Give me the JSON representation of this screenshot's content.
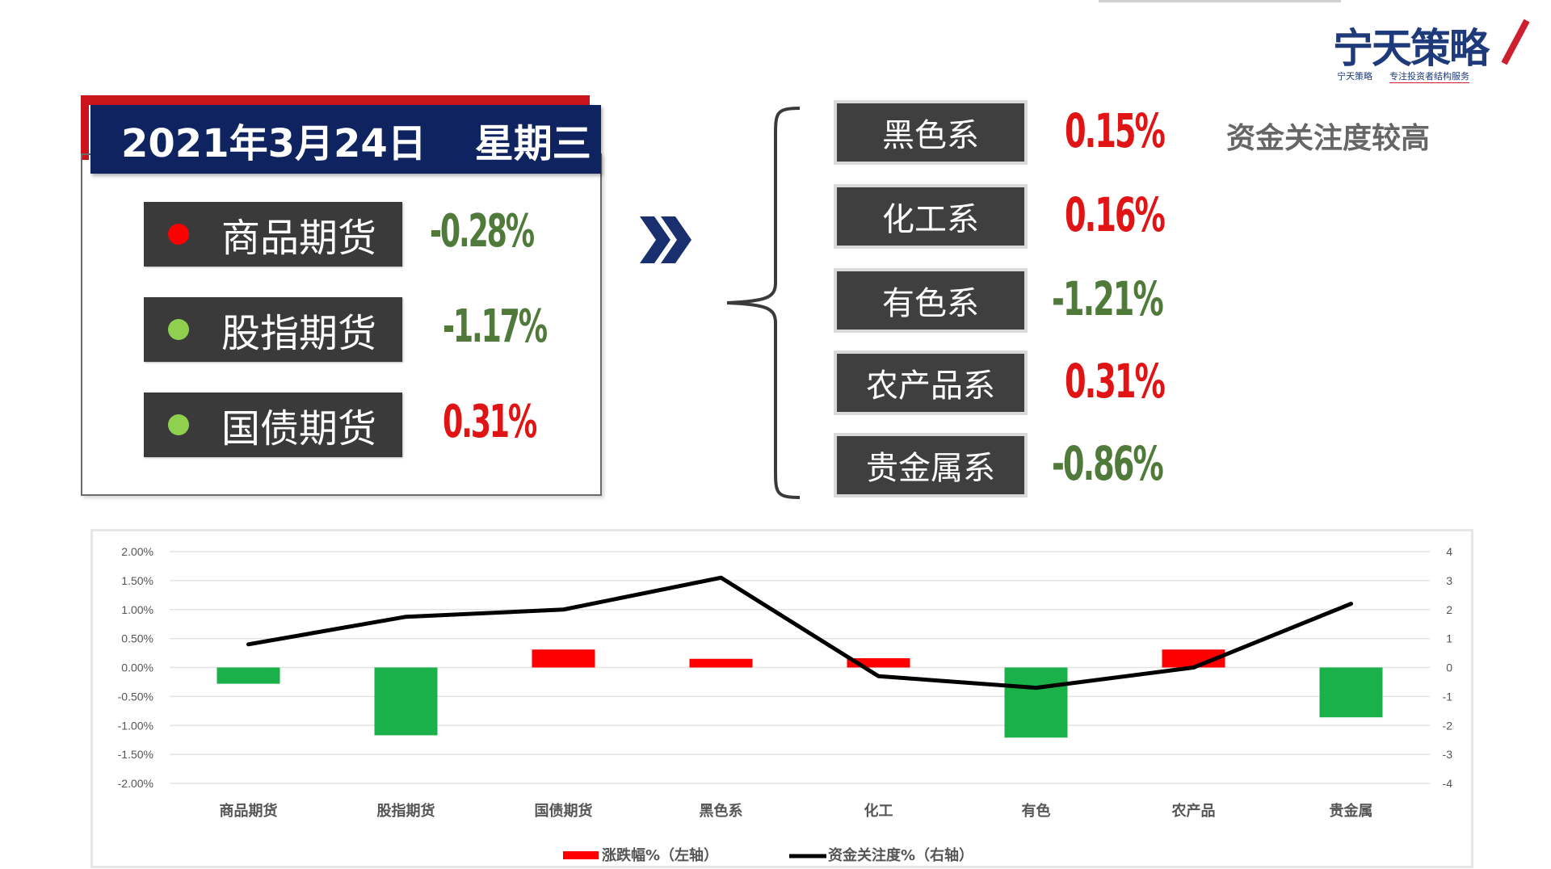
{
  "logo": {
    "main": "宁天策略",
    "sub_left": "宁天策略",
    "sub_right": "专注投资者结构服务"
  },
  "date_panel": {
    "date": "2021年3月24日",
    "weekday": "星期三",
    "items": [
      {
        "label": "商品期货",
        "value": "-0.28%",
        "dot_color": "#ff0000",
        "value_color": "#4f7a3a"
      },
      {
        "label": "股指期货",
        "value": "-1.17%",
        "dot_color": "#8fd14f",
        "value_color": "#4f7a3a"
      },
      {
        "label": "国债期货",
        "value": "0.31%",
        "dot_color": "#8fd14f",
        "value_color": "#e01414"
      }
    ]
  },
  "sectors": [
    {
      "label": "黑色系",
      "value": "0.15%",
      "value_color": "#e01414"
    },
    {
      "label": "化工系",
      "value": "0.16%",
      "value_color": "#e01414"
    },
    {
      "label": "有色系",
      "value": "-1.21%",
      "value_color": "#4f7a3a"
    },
    {
      "label": "农产品系",
      "value": "0.31%",
      "value_color": "#e01414"
    },
    {
      "label": "贵金属系",
      "value": "-0.86%",
      "value_color": "#4f7a3a"
    }
  ],
  "note": "资金关注度较高",
  "colors": {
    "positive": "#ff0000",
    "negative": "#1ab04a",
    "line": "#000000",
    "navy": "#0e2360"
  },
  "chart_data": {
    "type": "bar",
    "categories": [
      "商品期货",
      "股指期货",
      "国债期货",
      "黑色系",
      "化工",
      "有色",
      "农产品",
      "贵金属"
    ],
    "series": [
      {
        "name": "涨跌幅%（左轴）",
        "type": "bar",
        "axis": "left",
        "values": [
          -0.28,
          -1.17,
          0.31,
          0.15,
          0.16,
          -1.21,
          0.31,
          -0.86
        ]
      },
      {
        "name": "资金关注度%（右轴）",
        "type": "line",
        "axis": "right",
        "values": [
          0.8,
          1.75,
          2.0,
          3.1,
          -0.3,
          -0.7,
          0.0,
          2.2
        ]
      }
    ],
    "y_left": {
      "min": -2.0,
      "max": 2.0,
      "step": 0.5,
      "tick_labels": [
        "2.00%",
        "1.50%",
        "1.00%",
        "0.50%",
        "0.00%",
        "-0.50%",
        "-1.00%",
        "-1.50%",
        "-2.00%"
      ]
    },
    "y_right": {
      "min": -4,
      "max": 4,
      "step": 1,
      "tick_labels": [
        "4",
        "3",
        "2",
        "1",
        "0",
        "-1",
        "-2",
        "-3",
        "-4"
      ]
    },
    "grid": true,
    "legend": "bottom-center",
    "title": "",
    "xlabel": "",
    "ylabel": ""
  }
}
